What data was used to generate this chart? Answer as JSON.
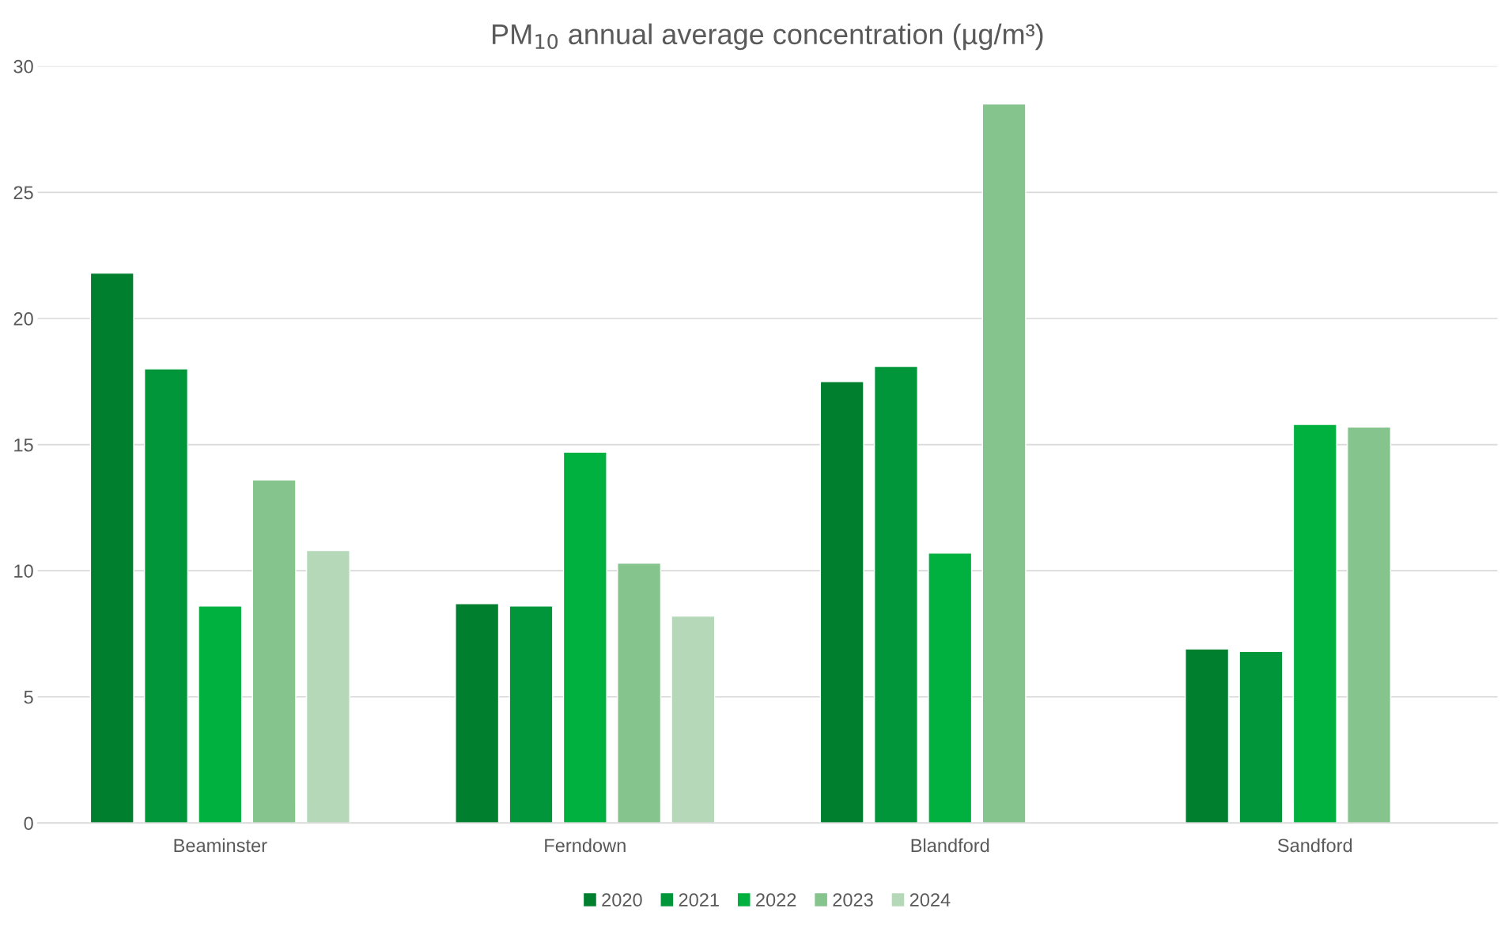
{
  "chart_data": {
    "type": "bar",
    "title": "PM$_{10}$ annual average concentration (µg/m³)",
    "categories": [
      "Beaminster",
      "Ferndown",
      "Blandford",
      "Sandford"
    ],
    "series": [
      {
        "name": "2020",
        "color": "#00802f",
        "values": [
          21.8,
          8.7,
          17.5,
          6.9
        ]
      },
      {
        "name": "2021",
        "color": "#009639",
        "values": [
          18.0,
          8.6,
          18.1,
          6.8
        ]
      },
      {
        "name": "2022",
        "color": "#00b140",
        "values": [
          8.6,
          14.7,
          10.7,
          15.8
        ]
      },
      {
        "name": "2023",
        "color": "#86c48d",
        "values": [
          13.6,
          10.3,
          28.5,
          15.7
        ]
      },
      {
        "name": "2024",
        "color": "#b5d9b8",
        "values": [
          10.8,
          8.2,
          null,
          null
        ]
      }
    ],
    "ylim": [
      0,
      30
    ],
    "yticks": [
      0,
      5,
      10,
      15,
      20,
      25,
      30
    ],
    "grid": "y",
    "legend": "bottom"
  }
}
